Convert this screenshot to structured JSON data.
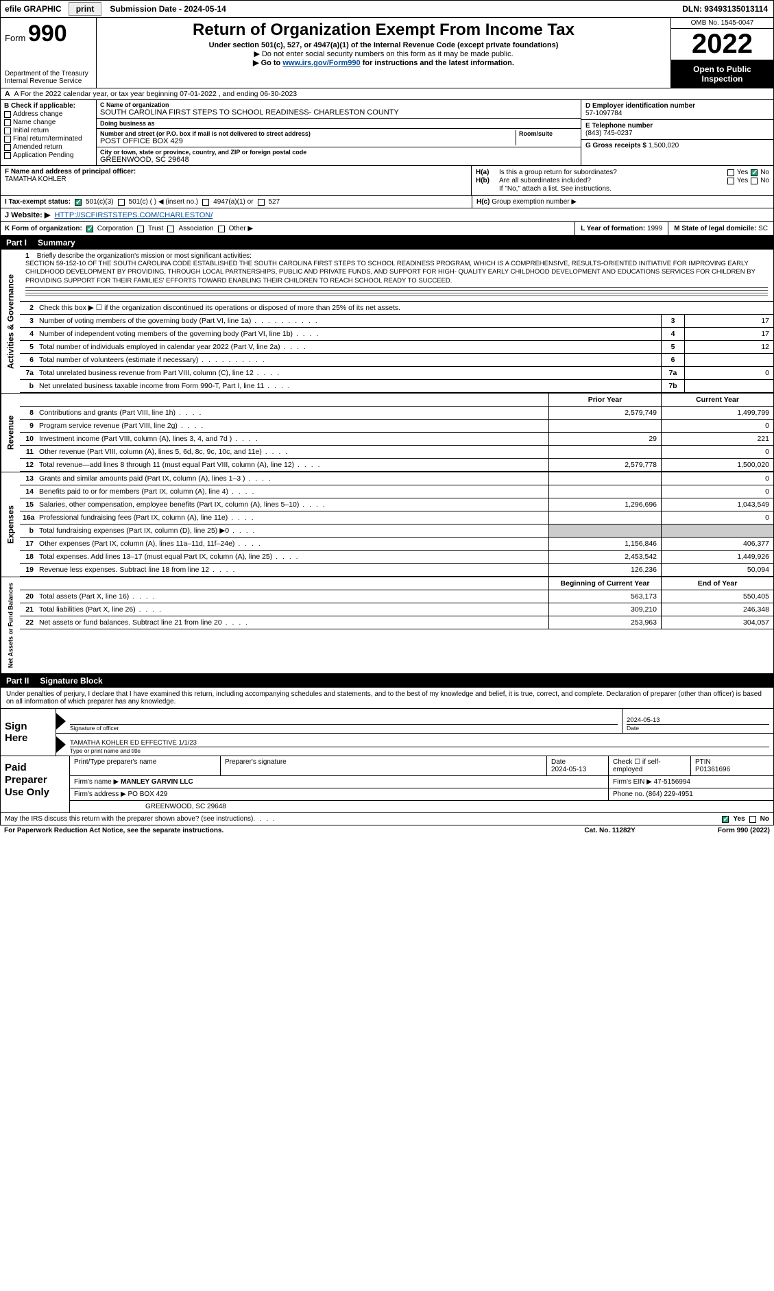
{
  "topbar": {
    "efile": "efile GRAPHIC",
    "print": "print",
    "submission_label": "Submission Date - 2024-05-14",
    "dln": "DLN: 93493135013114"
  },
  "header": {
    "form_prefix": "Form",
    "form_number": "990",
    "dept": "Department of the Treasury Internal Revenue Service",
    "title": "Return of Organization Exempt From Income Tax",
    "subtitle1": "Under section 501(c), 527, or 4947(a)(1) of the Internal Revenue Code (except private foundations)",
    "subtitle2": "▶ Do not enter social security numbers on this form as it may be made public.",
    "subtitle3_pre": "▶ Go to ",
    "subtitle3_link": "www.irs.gov/Form990",
    "subtitle3_post": " for instructions and the latest information.",
    "omb": "OMB No. 1545-0047",
    "year": "2022",
    "open": "Open to Public Inspection"
  },
  "row_a": "A  For the 2022 calendar year, or tax year beginning 07-01-2022   , and ending 06-30-2023",
  "b": {
    "hdr": "B Check if applicable:",
    "opts": [
      "Address change",
      "Name change",
      "Initial return",
      "Final return/terminated",
      "Amended return",
      "Application Pending"
    ]
  },
  "c": {
    "name_label": "C Name of organization",
    "name": "SOUTH CAROLINA FIRST STEPS TO SCHOOL READINESS- CHARLESTON COUNTY",
    "dba_label": "Doing business as",
    "dba": "",
    "street_label": "Number and street (or P.O. box if mail is not delivered to street address)",
    "street": "POST OFFICE BOX 429",
    "room_label": "Room/suite",
    "city_label": "City or town, state or province, country, and ZIP or foreign postal code",
    "city": "GREENWOOD, SC  29648"
  },
  "d": {
    "ein_label": "D Employer identification number",
    "ein": "57-1097784",
    "phone_label": "E Telephone number",
    "phone": "(843) 745-0237",
    "gross_label": "G Gross receipts $",
    "gross": "1,500,020"
  },
  "f": {
    "label": "F  Name and address of principal officer:",
    "name": "TAMATHA KOHLER"
  },
  "h": {
    "ha_label": "H(a)",
    "ha_text": "Is this a group return for subordinates?",
    "hb_label": "H(b)",
    "hb_text": "Are all subordinates included?",
    "hb_note": "If \"No,\" attach a list. See instructions.",
    "hc_label": "H(c)",
    "hc_text": "Group exemption number ▶",
    "yes": "Yes",
    "no": "No"
  },
  "i": {
    "label": "I   Tax-exempt status:",
    "opts": [
      "501(c)(3)",
      "501(c) (  ) ◀ (insert no.)",
      "4947(a)(1) or",
      "527"
    ]
  },
  "j": {
    "label": "J   Website: ▶",
    "url": "HTTP://SCFIRSTSTEPS.COM/CHARLESTON/"
  },
  "k": {
    "label": "K Form of organization:",
    "opts": [
      "Corporation",
      "Trust",
      "Association",
      "Other ▶"
    ]
  },
  "l": {
    "label": "L Year of formation:",
    "val": "1999"
  },
  "m": {
    "label": "M State of legal domicile:",
    "val": "SC"
  },
  "parts": {
    "p1_num": "Part I",
    "p1_title": "Summary",
    "p2_num": "Part II",
    "p2_title": "Signature Block"
  },
  "sidelabels": {
    "gov": "Activities & Governance",
    "rev": "Revenue",
    "exp": "Expenses",
    "net": "Net Assets or Fund Balances"
  },
  "mission": {
    "num": "1",
    "lead": "Briefly describe the organization's mission or most significant activities:",
    "text": "SECTION 59-152-10 OF THE SOUTH CAROLINA CODE ESTABLISHED THE SOUTH CAROLINA FIRST STEPS TO SCHOOL READINESS PROGRAM, WHICH IS A COMPREHENSIVE, RESULTS-ORIENTED INITIATIVE FOR IMPROVING EARLY CHILDHOOD DEVELOPMENT BY PROVIDING, THROUGH LOCAL PARTNERSHIPS, PUBLIC AND PRIVATE FUNDS, AND SUPPORT FOR HIGH- QUALITY EARLY CHILDHOOD DEVELOPMENT AND EDUCATIONS SERVICES FOR CHILDREN BY PROVIDING SUPPORT FOR THEIR FAMILIES' EFFORTS TOWARD ENABLING THEIR CHILDREN TO REACH SCHOOL READY TO SUCCEED."
  },
  "gov_lines": {
    "l2": "Check this box ▶ ☐ if the organization discontinued its operations or disposed of more than 25% of its net assets.",
    "l3": {
      "d": "Number of voting members of the governing body (Part VI, line 1a)",
      "b": "3",
      "v": "17"
    },
    "l4": {
      "d": "Number of independent voting members of the governing body (Part VI, line 1b)",
      "b": "4",
      "v": "17"
    },
    "l5": {
      "d": "Total number of individuals employed in calendar year 2022 (Part V, line 2a)",
      "b": "5",
      "v": "12"
    },
    "l6": {
      "d": "Total number of volunteers (estimate if necessary)",
      "b": "6",
      "v": ""
    },
    "l7a": {
      "d": "Total unrelated business revenue from Part VIII, column (C), line 12",
      "b": "7a",
      "v": "0"
    },
    "l7b": {
      "d": "Net unrelated business taxable income from Form 990-T, Part I, line 11",
      "b": "7b",
      "v": ""
    }
  },
  "col_hdrs": {
    "prior": "Prior Year",
    "current": "Current Year",
    "bcy": "Beginning of Current Year",
    "eoy": "End of Year"
  },
  "rev_lines": [
    {
      "n": "8",
      "d": "Contributions and grants (Part VIII, line 1h)",
      "p": "2,579,749",
      "c": "1,499,799"
    },
    {
      "n": "9",
      "d": "Program service revenue (Part VIII, line 2g)",
      "p": "",
      "c": "0"
    },
    {
      "n": "10",
      "d": "Investment income (Part VIII, column (A), lines 3, 4, and 7d )",
      "p": "29",
      "c": "221"
    },
    {
      "n": "11",
      "d": "Other revenue (Part VIII, column (A), lines 5, 6d, 8c, 9c, 10c, and 11e)",
      "p": "",
      "c": "0"
    },
    {
      "n": "12",
      "d": "Total revenue—add lines 8 through 11 (must equal Part VIII, column (A), line 12)",
      "p": "2,579,778",
      "c": "1,500,020"
    }
  ],
  "exp_lines": [
    {
      "n": "13",
      "d": "Grants and similar amounts paid (Part IX, column (A), lines 1–3 )",
      "p": "",
      "c": "0"
    },
    {
      "n": "14",
      "d": "Benefits paid to or for members (Part IX, column (A), line 4)",
      "p": "",
      "c": "0"
    },
    {
      "n": "15",
      "d": "Salaries, other compensation, employee benefits (Part IX, column (A), lines 5–10)",
      "p": "1,296,696",
      "c": "1,043,549"
    },
    {
      "n": "16a",
      "d": "Professional fundraising fees (Part IX, column (A), line 11e)",
      "p": "",
      "c": "0"
    },
    {
      "n": "b",
      "d": "Total fundraising expenses (Part IX, column (D), line 25) ▶0",
      "shade": true
    },
    {
      "n": "17",
      "d": "Other expenses (Part IX, column (A), lines 11a–11d, 11f–24e)",
      "p": "1,156,846",
      "c": "406,377"
    },
    {
      "n": "18",
      "d": "Total expenses. Add lines 13–17 (must equal Part IX, column (A), line 25)",
      "p": "2,453,542",
      "c": "1,449,926"
    },
    {
      "n": "19",
      "d": "Revenue less expenses. Subtract line 18 from line 12",
      "p": "126,236",
      "c": "50,094"
    }
  ],
  "net_lines": [
    {
      "n": "20",
      "d": "Total assets (Part X, line 16)",
      "p": "563,173",
      "c": "550,405"
    },
    {
      "n": "21",
      "d": "Total liabilities (Part X, line 26)",
      "p": "309,210",
      "c": "246,348"
    },
    {
      "n": "22",
      "d": "Net assets or fund balances. Subtract line 21 from line 20",
      "p": "253,963",
      "c": "304,057"
    }
  ],
  "sig_decl": "Under penalties of perjury, I declare that I have examined this return, including accompanying schedules and statements, and to the best of my knowledge and belief, it is true, correct, and complete. Declaration of preparer (other than officer) is based on all information of which preparer has any knowledge.",
  "sign": {
    "left": "Sign Here",
    "sig_officer_lab": "Signature of officer",
    "date_lab": "Date",
    "date": "2024-05-13",
    "name_line": "TAMATHA KOHLER  ED EFFECTIVE 1/1/23",
    "name_lab": "Type or print name and title"
  },
  "paid": {
    "left": "Paid Preparer Use Only",
    "r1": {
      "c1": "Print/Type preparer's name",
      "c2": "Preparer's signature",
      "c3l": "Date",
      "c3": "2024-05-13",
      "c4": "Check ☐ if self-employed",
      "c5l": "PTIN",
      "c5": "P01361696"
    },
    "r2": {
      "lab": "Firm's name   ▶",
      "val": "MANLEY GARVIN LLC",
      "einl": "Firm's EIN ▶",
      "ein": "47-5156994"
    },
    "r3": {
      "lab": "Firm's address ▶",
      "val": "PO BOX 429",
      "phl": "Phone no.",
      "ph": "(864) 229-4951"
    },
    "r4": {
      "val": "GREENWOOD, SC  29648"
    }
  },
  "footer": {
    "discuss": "May the IRS discuss this return with the preparer shown above? (see instructions)",
    "yes": "Yes",
    "no": "No",
    "pra": "For Paperwork Reduction Act Notice, see the separate instructions.",
    "cat": "Cat. No. 11282Y",
    "form": "Form 990 (2022)"
  }
}
